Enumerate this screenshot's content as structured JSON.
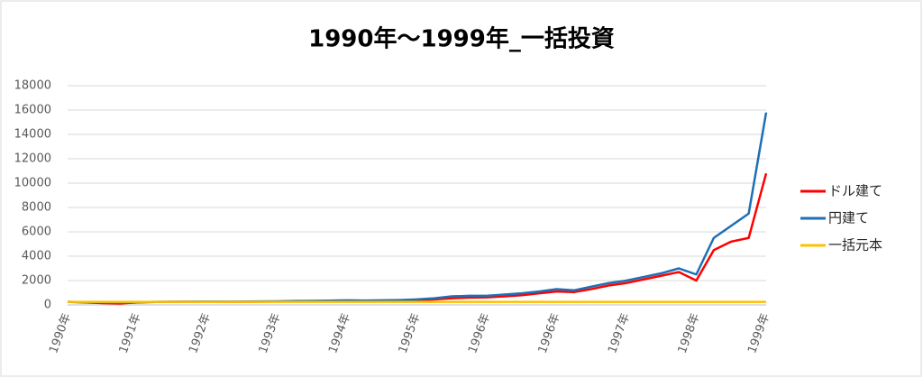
{
  "chart_data": {
    "type": "line",
    "title": "1990年〜1999年_一括投資",
    "categories": [
      "1990年",
      null,
      null,
      null,
      "1991年",
      null,
      null,
      null,
      "1992年",
      null,
      null,
      null,
      "1993年",
      null,
      null,
      null,
      "1994年",
      null,
      null,
      null,
      "1995年",
      null,
      null,
      null,
      "1996年",
      null,
      null,
      null,
      "1996年",
      null,
      null,
      null,
      "1997年",
      null,
      null,
      null,
      "1998年",
      null,
      null,
      null,
      "1999年"
    ],
    "series": [
      {
        "name": "ドル建て",
        "color": "#ff0000",
        "values": [
          250,
          200,
          150,
          120,
          200,
          240,
          250,
          260,
          270,
          260,
          250,
          260,
          280,
          290,
          300,
          320,
          330,
          320,
          330,
          350,
          380,
          450,
          550,
          600,
          620,
          700,
          800,
          950,
          1100,
          1050,
          1300,
          1600,
          1800,
          2100,
          2400,
          2700,
          2000,
          4500,
          5200,
          5500,
          10800
        ]
      },
      {
        "name": "円建て",
        "color": "#1f6fb5",
        "values": [
          250,
          230,
          200,
          180,
          220,
          250,
          260,
          270,
          280,
          270,
          280,
          290,
          300,
          320,
          330,
          350,
          380,
          360,
          380,
          400,
          450,
          550,
          700,
          750,
          750,
          850,
          950,
          1100,
          1300,
          1200,
          1500,
          1800,
          2000,
          2300,
          2600,
          3000,
          2500,
          5500,
          6500,
          7500,
          15800
        ]
      },
      {
        "name": "一括元本",
        "color": "#ffc000",
        "values": [
          250,
          250,
          250,
          250,
          250,
          250,
          250,
          250,
          250,
          250,
          250,
          250,
          250,
          250,
          250,
          250,
          250,
          250,
          250,
          250,
          250,
          250,
          250,
          250,
          250,
          250,
          250,
          250,
          250,
          250,
          250,
          250,
          250,
          250,
          250,
          250,
          250,
          250,
          250,
          250,
          250
        ]
      }
    ],
    "ylim": [
      0,
      18000
    ],
    "yticks": [
      0,
      2000,
      4000,
      6000,
      8000,
      10000,
      12000,
      14000,
      16000,
      18000
    ],
    "grid": true
  }
}
